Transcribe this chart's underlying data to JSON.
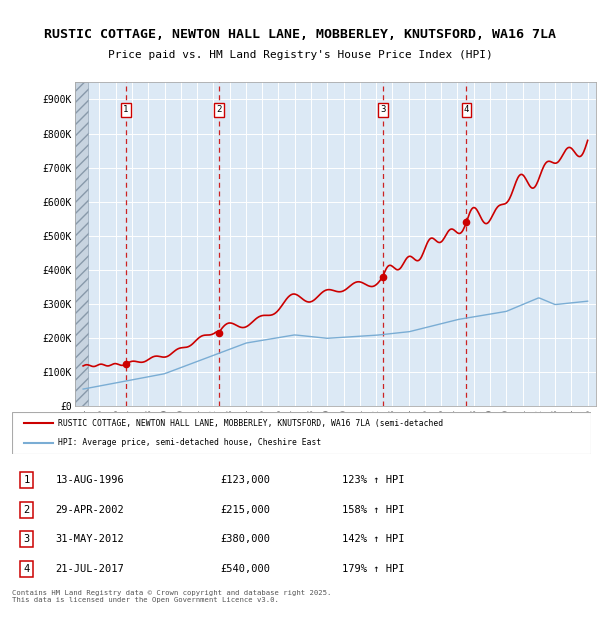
{
  "title_line1": "RUSTIC COTTAGE, NEWTON HALL LANE, MOBBERLEY, KNUTSFORD, WA16 7LA",
  "title_line2": "Price paid vs. HM Land Registry's House Price Index (HPI)",
  "plot_bg_color": "#dce9f5",
  "dashed_line_color": "#cc2222",
  "transactions": [
    {
      "num": 1,
      "date": "13-AUG-1996",
      "price": 123000,
      "x": 1996.617,
      "pct": "123%",
      "dir": "↑"
    },
    {
      "num": 2,
      "date": "29-APR-2002",
      "price": 215000,
      "x": 2002.327,
      "pct": "158%",
      "dir": "↑"
    },
    {
      "num": 3,
      "date": "31-MAY-2012",
      "price": 380000,
      "x": 2012.414,
      "pct": "142%",
      "dir": "↑"
    },
    {
      "num": 4,
      "date": "21-JUL-2017",
      "price": 540000,
      "x": 2017.552,
      "pct": "179%",
      "dir": "↑"
    }
  ],
  "red_line_color": "#cc0000",
  "blue_line_color": "#7aadd4",
  "ylim": [
    0,
    950000
  ],
  "xlim": [
    1993.5,
    2025.5
  ],
  "yticks": [
    0,
    100000,
    200000,
    300000,
    400000,
    500000,
    600000,
    700000,
    800000,
    900000
  ],
  "ytick_labels": [
    "£0",
    "£100K",
    "£200K",
    "£300K",
    "£400K",
    "£500K",
    "£600K",
    "£700K",
    "£800K",
    "£900K"
  ],
  "xticks": [
    1994,
    1995,
    1996,
    1997,
    1998,
    1999,
    2000,
    2001,
    2002,
    2003,
    2004,
    2005,
    2006,
    2007,
    2008,
    2009,
    2010,
    2011,
    2012,
    2013,
    2014,
    2015,
    2016,
    2017,
    2018,
    2019,
    2020,
    2021,
    2022,
    2023,
    2024,
    2025
  ],
  "legend_label_red": "RUSTIC COTTAGE, NEWTON HALL LANE, MOBBERLEY, KNUTSFORD, WA16 7LA (semi-detached",
  "legend_label_blue": "HPI: Average price, semi-detached house, Cheshire East",
  "footnote": "Contains HM Land Registry data © Crown copyright and database right 2025.\nThis data is licensed under the Open Government Licence v3.0."
}
